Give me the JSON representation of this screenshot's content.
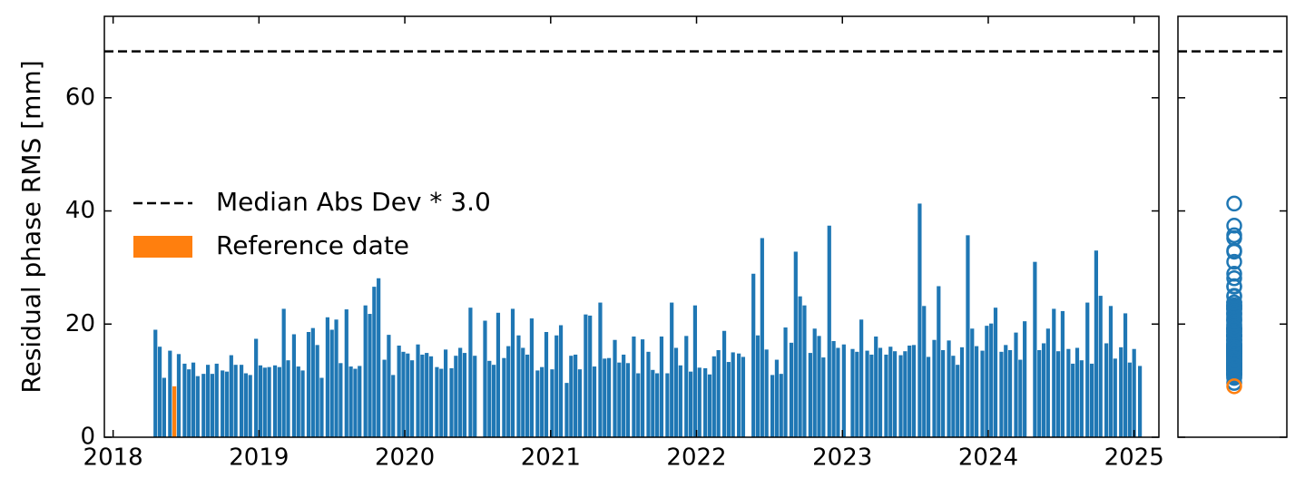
{
  "chart_data": {
    "type": "bar",
    "ylabel": "Residual phase RMS [mm]",
    "xlim": [
      2017.94,
      2025.17
    ],
    "xticks": [
      2018,
      2019,
      2020,
      2021,
      2022,
      2023,
      2024,
      2025
    ],
    "ylim": [
      0,
      74.4
    ],
    "yticks": [
      0,
      20,
      40,
      60
    ],
    "threshold": {
      "name": "Median Abs Dev * 3.0",
      "value": 68.2,
      "color": "#000000"
    },
    "series": [
      {
        "color": "#1f77b4",
        "x": [
          2018.29,
          2018.32,
          2018.35,
          2018.39,
          2018.45,
          2018.49,
          2018.52,
          2018.55,
          2018.58,
          2018.62,
          2018.65,
          2018.68,
          2018.71,
          2018.75,
          2018.78,
          2018.81,
          2018.84,
          2018.88,
          2018.91,
          2018.94,
          2018.98,
          2019.01,
          2019.04,
          2019.07,
          2019.11,
          2019.14,
          2019.17,
          2019.2,
          2019.24,
          2019.27,
          2019.3,
          2019.34,
          2019.37,
          2019.4,
          2019.43,
          2019.47,
          2019.5,
          2019.53,
          2019.56,
          2019.6,
          2019.63,
          2019.66,
          2019.69,
          2019.73,
          2019.76,
          2019.79,
          2019.82,
          2019.86,
          2019.89,
          2019.92,
          2019.96,
          2019.99,
          2020.02,
          2020.05,
          2020.09,
          2020.12,
          2020.15,
          2020.18,
          2020.22,
          2020.25,
          2020.28,
          2020.32,
          2020.35,
          2020.38,
          2020.41,
          2020.45,
          2020.48,
          2020.55,
          2020.58,
          2020.61,
          2020.64,
          2020.68,
          2020.71,
          2020.74,
          2020.78,
          2020.81,
          2020.84,
          2020.87,
          2020.91,
          2020.94,
          2020.97,
          2021.01,
          2021.04,
          2021.07,
          2021.11,
          2021.14,
          2021.17,
          2021.2,
          2021.24,
          2021.27,
          2021.3,
          2021.34,
          2021.37,
          2021.4,
          2021.44,
          2021.47,
          2021.5,
          2021.53,
          2021.57,
          2021.6,
          2021.63,
          2021.67,
          2021.7,
          2021.73,
          2021.76,
          2021.8,
          2021.83,
          2021.86,
          2021.89,
          2021.93,
          2021.96,
          2021.99,
          2022.02,
          2022.06,
          2022.09,
          2022.12,
          2022.15,
          2022.19,
          2022.22,
          2022.25,
          2022.29,
          2022.32,
          2022.39,
          2022.42,
          2022.45,
          2022.48,
          2022.52,
          2022.55,
          2022.58,
          2022.61,
          2022.65,
          2022.68,
          2022.71,
          2022.74,
          2022.78,
          2022.81,
          2022.84,
          2022.87,
          2022.91,
          2022.94,
          2022.97,
          2023.01,
          2023.07,
          2023.1,
          2023.13,
          2023.17,
          2023.2,
          2023.23,
          2023.26,
          2023.3,
          2023.33,
          2023.36,
          2023.4,
          2023.43,
          2023.46,
          2023.49,
          2023.53,
          2023.56,
          2023.59,
          2023.63,
          2023.66,
          2023.69,
          2023.73,
          2023.76,
          2023.79,
          2023.82,
          2023.86,
          2023.89,
          2023.92,
          2023.96,
          2023.99,
          2024.02,
          2024.05,
          2024.09,
          2024.12,
          2024.15,
          2024.19,
          2024.22,
          2024.25,
          2024.32,
          2024.35,
          2024.38,
          2024.41,
          2024.45,
          2024.48,
          2024.51,
          2024.55,
          2024.58,
          2024.61,
          2024.64,
          2024.68,
          2024.71,
          2024.74,
          2024.77,
          2024.81,
          2024.84,
          2024.87,
          2024.91,
          2024.94,
          2024.97,
          2025.0,
          2025.04
        ],
        "values": [
          19,
          16,
          10.5,
          15.3,
          14.7,
          13,
          12,
          13.2,
          10.8,
          11.2,
          12.8,
          11.2,
          13,
          11.8,
          11.6,
          14.5,
          12.8,
          12.8,
          11.3,
          11,
          17.4,
          12.7,
          12.3,
          12.4,
          12.7,
          12.4,
          22.7,
          13.6,
          18.2,
          12.5,
          11.8,
          18.6,
          19.3,
          16.3,
          10.5,
          21.2,
          19,
          20.8,
          13.1,
          22.6,
          12.5,
          12.1,
          12.6,
          23.3,
          21.8,
          26.6,
          28.1,
          13.7,
          18.1,
          11,
          16.2,
          15.1,
          14.8,
          13.6,
          16.4,
          14.6,
          14.9,
          14.3,
          12.4,
          12.1,
          15.5,
          12.2,
          14.4,
          15.8,
          14.9,
          22.9,
          14.4,
          20.6,
          13.5,
          12.8,
          22,
          14,
          16.1,
          22.7,
          18,
          15.8,
          14.6,
          21,
          11.8,
          12.4,
          18.6,
          12,
          18,
          19.8,
          9.6,
          14.4,
          14.6,
          12,
          21.7,
          21.5,
          12.5,
          23.8,
          13.9,
          14,
          17.2,
          13.2,
          14.6,
          13.1,
          17.8,
          11.3,
          17.3,
          15.1,
          11.9,
          11.3,
          17.8,
          11.3,
          23.8,
          15.8,
          12.7,
          17.9,
          11.6,
          23.3,
          12.3,
          12.2,
          11.1,
          14.3,
          15.4,
          18.8,
          13.3,
          15,
          14.8,
          14.2,
          28.9,
          18,
          35.2,
          15.5,
          11,
          13.7,
          11.2,
          19.4,
          16.7,
          32.8,
          24.9,
          23.3,
          14.9,
          19.2,
          17.9,
          14.1,
          37.4,
          17,
          15.8,
          16.4,
          15.6,
          15.1,
          20.8,
          15.3,
          14.6,
          17.8,
          15.8,
          14.6,
          16,
          15.2,
          14.5,
          15.2,
          16.2,
          16.3,
          41.3,
          23.2,
          14.2,
          17.2,
          26.7,
          15.4,
          17.1,
          14.4,
          12.8,
          15.9,
          35.7,
          19.2,
          16.1,
          15.3,
          19.7,
          20.1,
          22.9,
          15.1,
          16.3,
          15.4,
          18.5,
          13.7,
          20.5,
          31,
          15.4,
          16.6,
          19.2,
          22.7,
          15.2,
          22.3,
          15.6,
          13,
          15.8,
          13.6,
          23.8,
          13,
          33,
          25,
          16.6,
          23.2,
          13.9,
          15.9,
          21.9,
          13.2,
          15.6,
          12.6
        ]
      },
      {
        "name": "Reference date",
        "color": "#ff7f0e",
        "x": [
          2018.42
        ],
        "values": [
          9
        ]
      }
    ]
  }
}
